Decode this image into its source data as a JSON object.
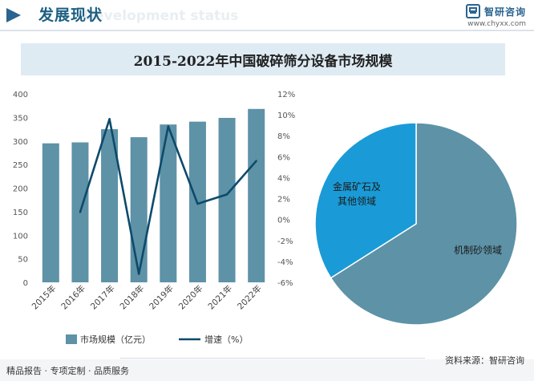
{
  "header": {
    "title": "发展现状",
    "subtitle": "Development status"
  },
  "brand": {
    "name": "智研咨询",
    "url": "www.chyxx.com"
  },
  "colors": {
    "bar": "#5e92a7",
    "line": "#0d4a6b",
    "pie_large": "#5e92a7",
    "pie_small": "#1a9bd7",
    "header_accent": "#2a6490"
  },
  "chart_data": [
    {
      "type": "bar",
      "title": "2015-2022年中国破碎筛分设备市场规模",
      "categories": [
        "2015年",
        "2016年",
        "2017年",
        "2018年",
        "2019年",
        "2020年",
        "2021年",
        "2022年"
      ],
      "series": [
        {
          "name": "市场规模（亿元）",
          "type": "bar",
          "axis": "left",
          "values": [
            295,
            297,
            325,
            308,
            335,
            341,
            349,
            368
          ]
        },
        {
          "name": "增速（%）",
          "type": "line",
          "axis": "right",
          "values": [
            null,
            0.7,
            9.6,
            -5.2,
            8.9,
            1.5,
            2.4,
            5.6
          ]
        }
      ],
      "y_left": {
        "lim": [
          0,
          400
        ],
        "ticks": [
          "0",
          "50",
          "100",
          "150",
          "200",
          "250",
          "300",
          "350",
          "400"
        ]
      },
      "y_right": {
        "lim": [
          -6,
          12
        ],
        "ticks": [
          "-6%",
          "-4%",
          "-2%",
          "0%",
          "2%",
          "4%",
          "6%",
          "8%",
          "10%",
          "12%"
        ]
      },
      "legend": "bottom",
      "grid": false
    },
    {
      "type": "pie",
      "slices": [
        {
          "label": "机制砂领域",
          "value": 66
        },
        {
          "label": "金属矿石及其他领域",
          "label_lines": [
            "金属矿石及",
            "其他领域"
          ],
          "value": 34
        }
      ]
    }
  ],
  "footer": {
    "left": "精品报告 · 专项定制 · 品质服务",
    "right": "资料来源：智研咨询"
  }
}
